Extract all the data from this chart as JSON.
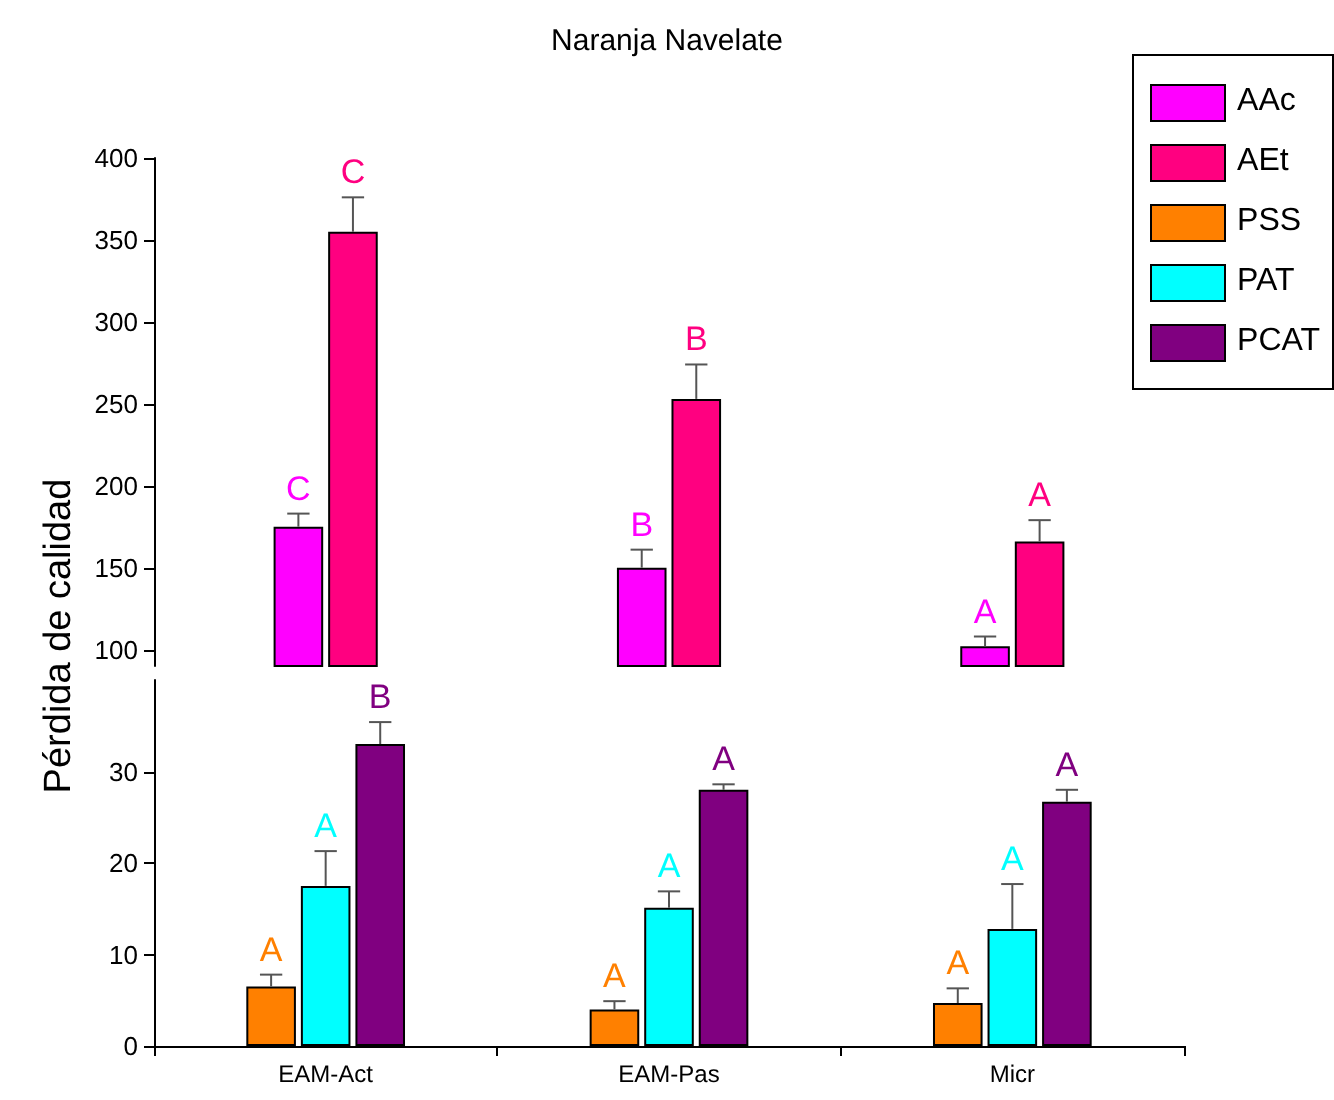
{
  "chart_data": [
    {
      "type": "bar",
      "title": "Naranja Navelate",
      "ylabel": "Pérdida de calidad",
      "categories": [
        null,
        null,
        null
      ],
      "ylim": [
        90,
        400
      ],
      "yticks": [
        100,
        150,
        200,
        250,
        300,
        350,
        400
      ],
      "tick_labels": "y",
      "legend": "top right",
      "series": [
        {
          "name": "AAc",
          "color": "#ff00ff",
          "values": [
            175,
            150,
            102
          ],
          "errors": [
            [
              175,
              183
            ],
            [
              150,
              161
            ],
            [
              102,
              108
            ]
          ],
          "value_labels": [
            "C",
            "B",
            "A"
          ]
        },
        {
          "name": "AEt",
          "color": "#ff0080",
          "values": [
            355,
            253,
            166
          ],
          "errors": [
            [
              355,
              376
            ],
            [
              253,
              274
            ],
            [
              166,
              179
            ]
          ],
          "value_labels": [
            "C",
            "B",
            "A"
          ]
        }
      ]
    },
    {
      "type": "bar",
      "categories": [
        "EAM-Act",
        "EAM-Pas",
        "Micr"
      ],
      "ylim": [
        0,
        40
      ],
      "yticks": [
        0,
        10,
        20,
        30
      ],
      "legend": "top right",
      "series": [
        {
          "name": "PSS",
          "color": "#ff8000",
          "values": [
            6.5,
            4,
            4.7
          ],
          "errors": [
            [
              6.5,
              7.8
            ],
            [
              4,
              4.9
            ],
            [
              4.7,
              6.3
            ]
          ],
          "value_labels": [
            "A",
            "A",
            "A"
          ]
        },
        {
          "name": "PAT",
          "color": "#00ffff",
          "values": [
            17.5,
            15.1,
            12.8
          ],
          "errors": [
            [
              17.5,
              21.3
            ],
            [
              15.1,
              16.9
            ],
            [
              12.8,
              17.7
            ]
          ],
          "value_labels": [
            "A",
            "A",
            "A"
          ]
        },
        {
          "name": "PCAT",
          "color": "#800080",
          "values": [
            33,
            28,
            26.7
          ],
          "errors": [
            [
              33,
              35.4
            ],
            [
              28,
              28.6
            ],
            [
              26.7,
              28
            ]
          ],
          "value_labels": [
            "B",
            "A",
            "A"
          ]
        }
      ]
    }
  ]
}
